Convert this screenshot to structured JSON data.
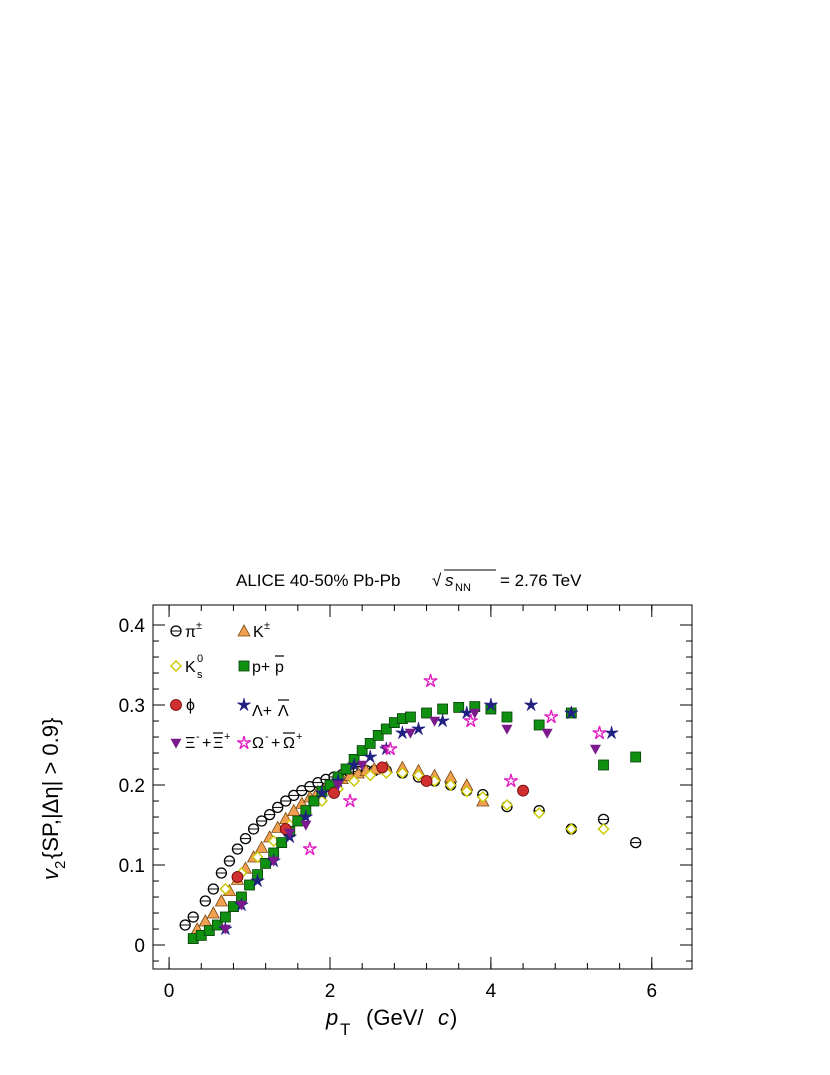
{
  "chart_data": {
    "type": "scatter",
    "title": "ALICE 40-50% Pb-Pb √s_NN = 2.76 TeV",
    "title_parts": {
      "main": "ALICE 40-50% Pb-Pb",
      "sqrt_symbol": "√",
      "s_symbol": "s",
      "s_subscript": "NN",
      "energy": "= 2.76 TeV"
    },
    "xlabel": "p_T (GeV/c)",
    "xlabel_parts": {
      "p": "p",
      "T": "T",
      "unit_open": "(GeV/",
      "c": "c",
      "unit_close": ")"
    },
    "ylabel": "v_2{SP,|Δη| > 0.9}",
    "ylabel_parts": {
      "v": "v",
      "sub": "2",
      "rest": "{SP,|Δη| > 0.9}"
    },
    "xlim": [
      -0.2,
      6.5
    ],
    "ylim": [
      -0.03,
      0.425
    ],
    "xticks": [
      0,
      2,
      4,
      6
    ],
    "xtick_labels": [
      "0",
      "2",
      "4",
      "6"
    ],
    "yticks": [
      0,
      0.1,
      0.2,
      0.3,
      0.4
    ],
    "ytick_labels": [
      "0",
      "0.1",
      "0.2",
      "0.3",
      "0.4"
    ],
    "grid": false,
    "legend_placement": "top-left",
    "series": [
      {
        "name": "π±",
        "legend": {
          "base": "π",
          "sup": "±"
        },
        "marker": "circle-open-cross",
        "color": "#000000",
        "x": [
          0.2,
          0.3,
          0.45,
          0.55,
          0.65,
          0.75,
          0.85,
          0.95,
          1.05,
          1.15,
          1.25,
          1.35,
          1.45,
          1.55,
          1.65,
          1.75,
          1.85,
          1.95,
          2.05,
          2.15,
          2.25,
          2.35,
          2.45,
          2.55,
          2.7,
          2.9,
          3.1,
          3.3,
          3.5,
          3.7,
          3.9,
          4.2,
          4.6,
          5.0,
          5.4,
          5.8
        ],
        "y": [
          0.025,
          0.035,
          0.055,
          0.07,
          0.09,
          0.105,
          0.12,
          0.133,
          0.145,
          0.155,
          0.163,
          0.172,
          0.18,
          0.187,
          0.193,
          0.198,
          0.203,
          0.207,
          0.21,
          0.213,
          0.215,
          0.217,
          0.218,
          0.218,
          0.218,
          0.215,
          0.21,
          0.205,
          0.2,
          0.193,
          0.188,
          0.173,
          0.168,
          0.145,
          0.157,
          0.128
        ]
      },
      {
        "name": "K±",
        "legend": {
          "base": "K",
          "sup": "±"
        },
        "marker": "triangle",
        "color": "#f0a050",
        "x": [
          0.35,
          0.45,
          0.55,
          0.65,
          0.75,
          0.85,
          0.95,
          1.05,
          1.15,
          1.25,
          1.35,
          1.45,
          1.55,
          1.65,
          1.75,
          1.85,
          1.95,
          2.05,
          2.15,
          2.25,
          2.35,
          2.45,
          2.55,
          2.7,
          2.9,
          3.1,
          3.3,
          3.5,
          3.7,
          3.9
        ],
        "y": [
          0.02,
          0.03,
          0.04,
          0.055,
          0.068,
          0.082,
          0.096,
          0.11,
          0.122,
          0.135,
          0.147,
          0.158,
          0.168,
          0.177,
          0.185,
          0.192,
          0.198,
          0.204,
          0.208,
          0.212,
          0.215,
          0.218,
          0.22,
          0.222,
          0.222,
          0.218,
          0.212,
          0.21,
          0.2,
          0.18
        ]
      },
      {
        "name": "K0S",
        "legend": {
          "base": "K",
          "sup": "0",
          "sub": "s"
        },
        "marker": "diamond-open",
        "color": "#c8c800",
        "x": [
          0.7,
          0.9,
          1.1,
          1.3,
          1.5,
          1.7,
          1.9,
          2.1,
          2.3,
          2.5,
          2.7,
          2.9,
          3.1,
          3.3,
          3.5,
          3.7,
          3.9,
          4.2,
          4.6,
          5.0,
          5.4
        ],
        "y": [
          0.07,
          0.09,
          0.11,
          0.13,
          0.15,
          0.165,
          0.18,
          0.195,
          0.205,
          0.212,
          0.215,
          0.215,
          0.212,
          0.205,
          0.2,
          0.192,
          0.185,
          0.175,
          0.165,
          0.145,
          0.145
        ]
      },
      {
        "name": "p+p̄",
        "legend": {
          "base": "p+",
          "bar": "p"
        },
        "marker": "square",
        "color": "#109010",
        "x": [
          0.3,
          0.4,
          0.5,
          0.6,
          0.7,
          0.8,
          0.9,
          1.0,
          1.1,
          1.2,
          1.3,
          1.4,
          1.5,
          1.6,
          1.7,
          1.8,
          1.9,
          2.0,
          2.1,
          2.2,
          2.3,
          2.4,
          2.5,
          2.6,
          2.7,
          2.8,
          2.9,
          3.0,
          3.2,
          3.4,
          3.6,
          3.8,
          4.0,
          4.2,
          4.6,
          5.0,
          5.4,
          5.8
        ],
        "y": [
          0.008,
          0.012,
          0.018,
          0.025,
          0.035,
          0.048,
          0.06,
          0.075,
          0.088,
          0.102,
          0.115,
          0.128,
          0.142,
          0.155,
          0.168,
          0.18,
          0.192,
          0.2,
          0.21,
          0.22,
          0.232,
          0.243,
          0.252,
          0.262,
          0.27,
          0.278,
          0.283,
          0.285,
          0.29,
          0.295,
          0.297,
          0.298,
          0.295,
          0.285,
          0.275,
          0.29,
          0.225,
          0.235
        ]
      },
      {
        "name": "ϕ",
        "legend": {
          "base": "ϕ"
        },
        "marker": "circle",
        "color": "#d03030",
        "x": [
          0.85,
          1.45,
          2.05,
          2.65,
          3.2,
          4.4
        ],
        "y": [
          0.085,
          0.145,
          0.19,
          0.222,
          0.205,
          0.193
        ]
      },
      {
        "name": "Λ+Λ̄",
        "legend": {
          "base": "Λ+",
          "bar": "Λ"
        },
        "marker": "star",
        "color": "#202080",
        "x": [
          0.7,
          0.9,
          1.1,
          1.3,
          1.5,
          1.7,
          1.9,
          2.1,
          2.3,
          2.5,
          2.7,
          2.9,
          3.1,
          3.4,
          3.7,
          4.0,
          4.5,
          5.0,
          5.5
        ],
        "y": [
          0.02,
          0.05,
          0.08,
          0.105,
          0.135,
          0.16,
          0.19,
          0.205,
          0.225,
          0.235,
          0.245,
          0.265,
          0.27,
          0.28,
          0.29,
          0.3,
          0.3,
          0.29,
          0.265
        ]
      },
      {
        "name": "Ξ-+Ξ̄+",
        "legend": {
          "base": "Ξ",
          "sup": "-",
          "plus": "+",
          "bar": "Ξ",
          "sup2": "+"
        },
        "marker": "triangle-down",
        "color": "#7a1a8c",
        "x": [
          0.7,
          0.9,
          1.3,
          1.5,
          1.7,
          2.1,
          2.4,
          2.7,
          3.0,
          3.3,
          3.8,
          4.2,
          4.7,
          5.3
        ],
        "y": [
          0.02,
          0.05,
          0.105,
          0.14,
          0.15,
          0.2,
          0.225,
          0.245,
          0.265,
          0.28,
          0.29,
          0.27,
          0.265,
          0.245
        ]
      },
      {
        "name": "Ω-+Ω̄+",
        "legend": {
          "base": "Ω",
          "sup": "-",
          "plus": "+",
          "bar": "Ω",
          "sup2": "+"
        },
        "marker": "star-open",
        "color": "#e020c0",
        "x": [
          1.75,
          2.25,
          2.75,
          3.25,
          3.75,
          4.25,
          4.75,
          5.35
        ],
        "y": [
          0.12,
          0.18,
          0.245,
          0.33,
          0.28,
          0.205,
          0.285,
          0.265
        ]
      }
    ]
  }
}
